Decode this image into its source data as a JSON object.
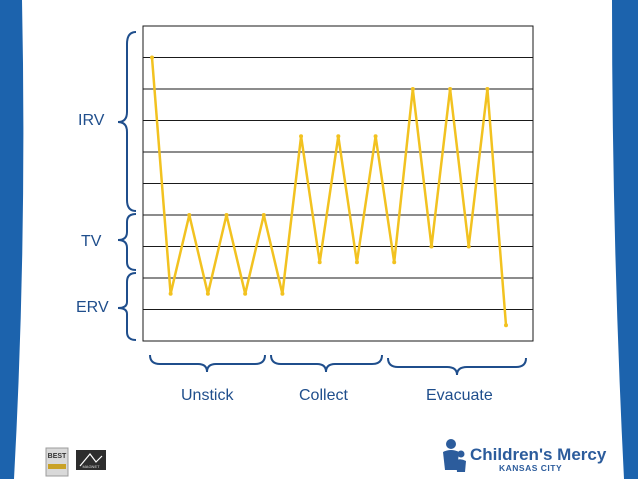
{
  "chart_data": {
    "type": "line",
    "x": [
      0,
      1,
      2,
      3,
      4,
      5,
      6,
      7,
      8,
      9,
      10,
      11,
      12,
      13,
      14,
      15,
      16,
      17,
      18,
      19
    ],
    "series": [
      {
        "values": [
          9.0,
          1.5,
          4.0,
          1.5,
          4.0,
          1.5,
          4.0,
          1.5,
          6.5,
          2.5,
          6.5,
          2.5,
          6.5,
          2.5,
          8.0,
          3.0,
          8.0,
          3.0,
          8.0,
          0.5
        ]
      }
    ],
    "ylim": [
      0,
      10
    ],
    "grid": true,
    "line_color": "#f2c220"
  },
  "volume_labels": {
    "irv": "IRV",
    "tv": "TV",
    "erv": "ERV"
  },
  "phase_labels": {
    "unstick": "Unstick",
    "collect": "Collect",
    "evacuate": "Evacuate"
  },
  "logo": {
    "name": "Children's Mercy",
    "location": "KANSAS CITY",
    "color": "#2c5c9c"
  },
  "badges": {
    "best": "BEST",
    "magnet": "MAGNET"
  },
  "colors": {
    "frame": "#1c63ad",
    "accent": "#2c5c9c",
    "line": "#f2c220"
  }
}
